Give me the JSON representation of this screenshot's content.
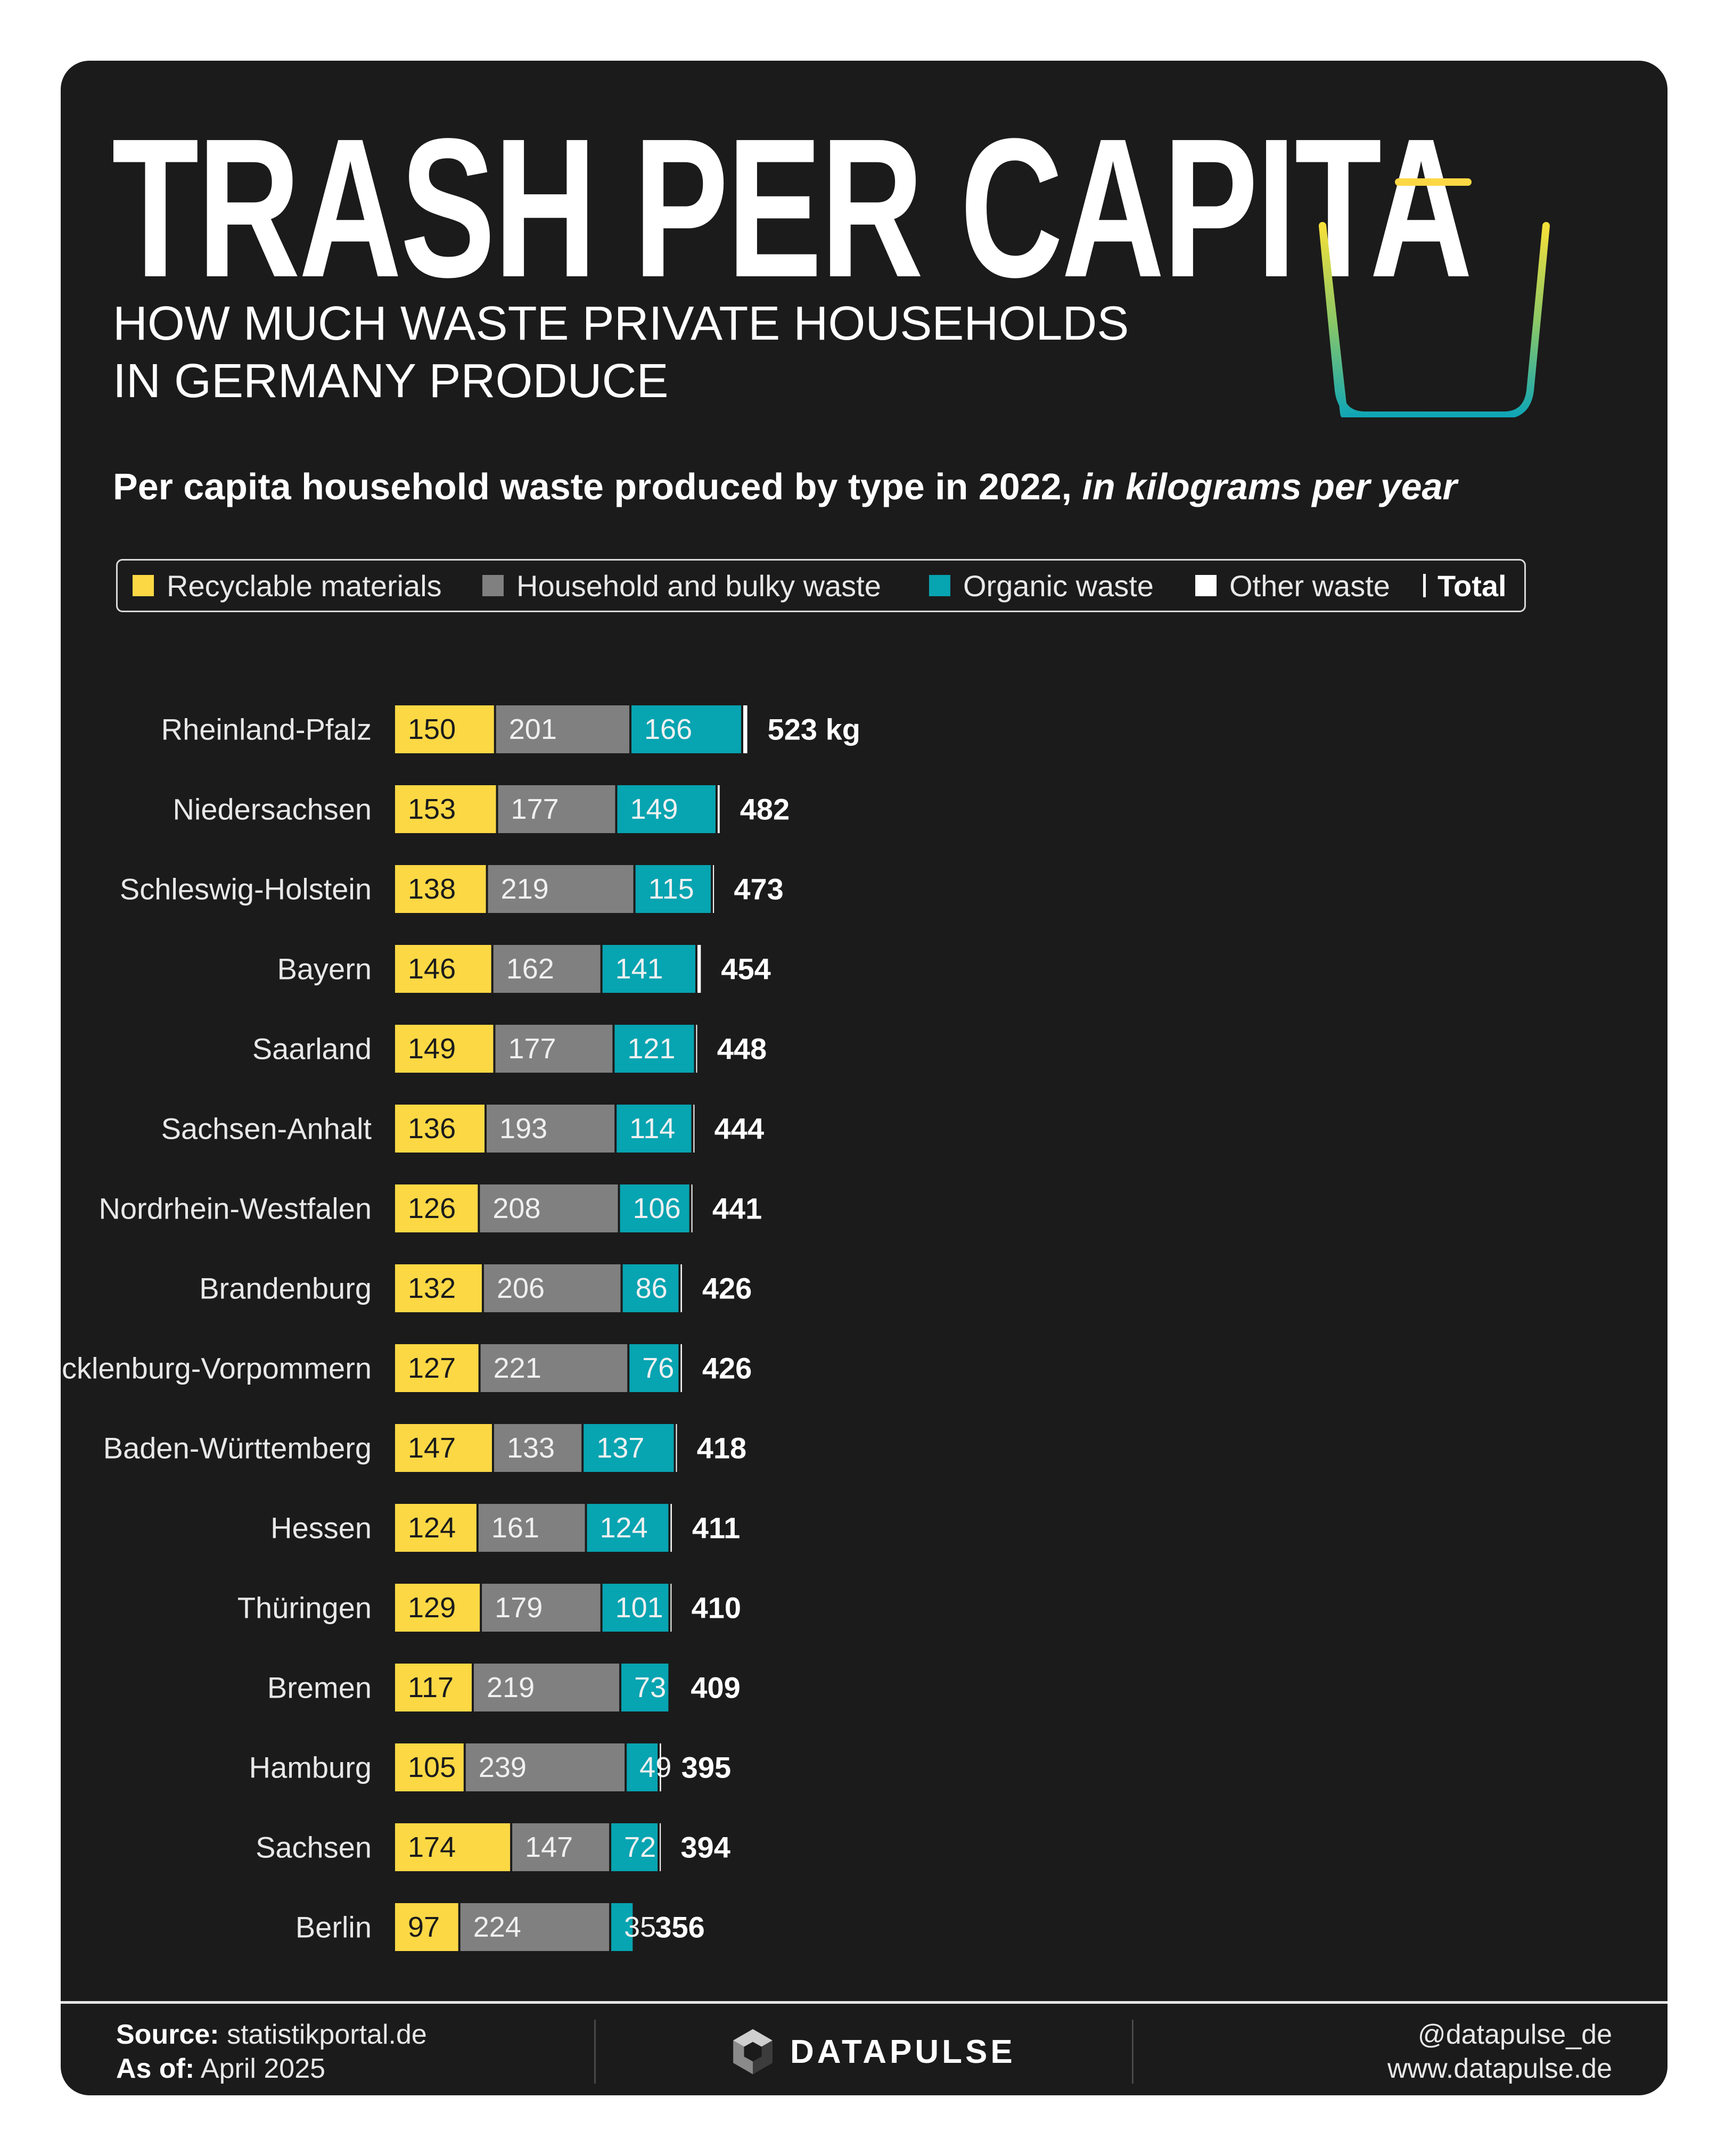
{
  "header": {
    "title": "TRASH PER CAPITA",
    "subtitle_line1": "HOW MUCH WASTE PRIVATE HOUSEHOLDS",
    "subtitle_line2": "IN GERMANY PRODUCE",
    "heading_main": "Per capita household waste produced by type in 2022, ",
    "heading_italic": "in kilograms per year"
  },
  "icons": {
    "header": "trash-can-icon",
    "brand": "datapulse-logo-icon"
  },
  "colors": {
    "background": "#1b1b1b",
    "recyclable": "#fcd845",
    "household": "#808080",
    "organic": "#07a4b1",
    "other": "#ffffff",
    "text": "#ffffff"
  },
  "legend": {
    "recyclable": "Recyclable materials",
    "household": "Household and bulky waste",
    "organic": "Organic waste",
    "other": "Other waste",
    "total": "Total"
  },
  "chart_data": {
    "type": "bar",
    "orientation": "horizontal",
    "stacked": true,
    "title": "Per capita household waste produced by type in 2022, in kilograms per year",
    "unit": "kg",
    "categories": [
      "Rheinland-Pfalz",
      "Niedersachsen",
      "Schleswig-Holstein",
      "Bayern",
      "Saarland",
      "Sachsen-Anhalt",
      "Nordrhein-Westfalen",
      "Brandenburg",
      "Mecklenburg-Vorpommern",
      "Baden-Württemberg",
      "Hessen",
      "Thüringen",
      "Bremen",
      "Hamburg",
      "Sachsen",
      "Berlin"
    ],
    "series": [
      {
        "name": "Recyclable materials",
        "values": [
          150,
          153,
          138,
          146,
          149,
          136,
          126,
          132,
          127,
          147,
          124,
          129,
          117,
          105,
          174,
          97
        ]
      },
      {
        "name": "Household and bulky waste",
        "values": [
          201,
          177,
          219,
          162,
          177,
          193,
          208,
          206,
          221,
          133,
          161,
          179,
          219,
          239,
          147,
          224
        ]
      },
      {
        "name": "Organic waste",
        "values": [
          166,
          149,
          115,
          141,
          121,
          114,
          106,
          86,
          76,
          137,
          124,
          101,
          73,
          49,
          72,
          35
        ]
      },
      {
        "name": "Other waste",
        "values": [
          6,
          3,
          1,
          5,
          1,
          1,
          1,
          2,
          2,
          1,
          2,
          1,
          0,
          2,
          1,
          0
        ]
      }
    ],
    "totals": [
      523,
      482,
      473,
      454,
      448,
      444,
      441,
      426,
      426,
      418,
      411,
      410,
      409,
      395,
      394,
      356
    ],
    "total_labels": [
      "523 kg",
      "482",
      "473",
      "454",
      "448",
      "444",
      "441",
      "426",
      "426",
      "418",
      "411",
      "410",
      "409",
      "395",
      "394",
      "356"
    ],
    "xlim": [
      0,
      523
    ],
    "legend_position": "top",
    "grid": false
  },
  "footer": {
    "source_label": "Source:",
    "source_value": "statistikportal.de",
    "asof_label": "As of:",
    "asof_value": "April 2025",
    "brand": "DATAPULSE",
    "handle": "@datapulse_de",
    "website": "www.datapulse.de"
  }
}
